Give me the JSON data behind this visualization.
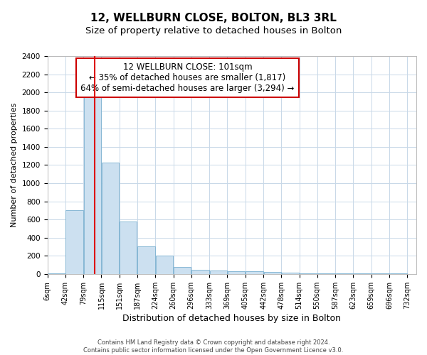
{
  "title": "12, WELLBURN CLOSE, BOLTON, BL3 3RL",
  "subtitle": "Size of property relative to detached houses in Bolton",
  "xlabel": "Distribution of detached houses by size in Bolton",
  "ylabel": "Number of detached properties",
  "annotation_line1": "12 WELLBURN CLOSE: 101sqm",
  "annotation_line2": "← 35% of detached houses are smaller (1,817)",
  "annotation_line3": "64% of semi-detached houses are larger (3,294) →",
  "footer_line1": "Contains HM Land Registry data © Crown copyright and database right 2024.",
  "footer_line2": "Contains public sector information licensed under the Open Government Licence v3.0.",
  "bar_left_edges": [
    6,
    42,
    79,
    115,
    151,
    187,
    224,
    260,
    296,
    333,
    369,
    405,
    442,
    478,
    514,
    550,
    587,
    623,
    659,
    696
  ],
  "bar_widths": [
    36,
    37,
    36,
    36,
    36,
    37,
    36,
    36,
    37,
    36,
    36,
    37,
    36,
    36,
    36,
    37,
    36,
    36,
    37,
    36
  ],
  "bar_heights": [
    10,
    700,
    1950,
    1230,
    575,
    305,
    200,
    80,
    50,
    35,
    30,
    30,
    20,
    15,
    10,
    8,
    5,
    5,
    5,
    5
  ],
  "bar_color": "#cce0f0",
  "bar_edgecolor": "#7ab0d0",
  "vline_color": "#dd0000",
  "vline_x": 101,
  "ylim": [
    0,
    2400
  ],
  "yticks": [
    0,
    200,
    400,
    600,
    800,
    1000,
    1200,
    1400,
    1600,
    1800,
    2000,
    2200,
    2400
  ],
  "xtick_labels": [
    "6sqm",
    "42sqm",
    "79sqm",
    "115sqm",
    "151sqm",
    "187sqm",
    "224sqm",
    "260sqm",
    "296sqm",
    "333sqm",
    "369sqm",
    "405sqm",
    "442sqm",
    "478sqm",
    "514sqm",
    "550sqm",
    "587sqm",
    "623sqm",
    "659sqm",
    "696sqm",
    "732sqm"
  ],
  "xtick_positions": [
    6,
    42,
    79,
    115,
    151,
    187,
    224,
    260,
    296,
    333,
    369,
    405,
    442,
    478,
    514,
    550,
    587,
    623,
    659,
    696,
    732
  ],
  "grid_color": "#c8d8e8",
  "bg_color": "#ffffff",
  "title_fontsize": 11,
  "subtitle_fontsize": 9.5,
  "annotation_box_edgecolor": "#cc0000",
  "annotation_fontsize": 8.5,
  "ylabel_fontsize": 8,
  "xlabel_fontsize": 9
}
